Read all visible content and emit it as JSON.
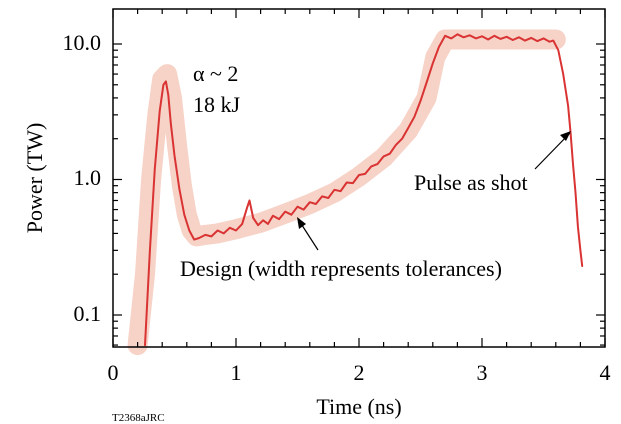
{
  "figure_id": "T2368aJRC",
  "chart_data": {
    "type": "line",
    "xlabel": "Time (ns)",
    "ylabel": "Power (TW)",
    "xlim": [
      0,
      4
    ],
    "ylim": [
      0.06,
      18
    ],
    "y_scale": "log",
    "x_ticks": [
      0,
      1,
      2,
      3,
      4
    ],
    "x_tick_labels": [
      "0",
      "1",
      "2",
      "3",
      "4"
    ],
    "y_ticks": [
      0.1,
      1.0,
      10.0
    ],
    "y_tick_labels": [
      "0.1",
      "1.0",
      "10.0"
    ],
    "annotations": {
      "alpha": "α ~ 2",
      "energy": "18 kJ",
      "shot_label": "Pulse as shot",
      "design_label": "Design (width represents tolerances)"
    },
    "series": [
      {
        "name": "Design (width represents tolerances)",
        "color": "#f6cdc0",
        "x": [
          0.2,
          0.26,
          0.31,
          0.36,
          0.4,
          0.44,
          0.48,
          0.52,
          0.56,
          0.6,
          0.64,
          0.68,
          0.75,
          0.85,
          1.0,
          1.2,
          1.4,
          1.6,
          1.8,
          2.0,
          2.2,
          2.4,
          2.55,
          2.62,
          2.7,
          3.0,
          3.3,
          3.6
        ],
        "y": [
          0.06,
          0.2,
          1.0,
          3.0,
          5.5,
          6.0,
          4.0,
          1.8,
          0.9,
          0.55,
          0.42,
          0.38,
          0.39,
          0.4,
          0.43,
          0.48,
          0.56,
          0.66,
          0.8,
          1.05,
          1.45,
          2.3,
          4.0,
          8.0,
          10.8,
          10.8,
          10.8,
          10.8
        ]
      },
      {
        "name": "Pulse as shot",
        "color": "#d93333",
        "x": [
          0.26,
          0.3,
          0.34,
          0.38,
          0.41,
          0.43,
          0.45,
          0.47,
          0.5,
          0.54,
          0.58,
          0.62,
          0.66,
          0.7,
          0.75,
          0.8,
          0.85,
          0.9,
          0.95,
          1.0,
          1.05,
          1.09,
          1.11,
          1.14,
          1.18,
          1.22,
          1.26,
          1.3,
          1.35,
          1.4,
          1.45,
          1.5,
          1.55,
          1.6,
          1.65,
          1.7,
          1.75,
          1.8,
          1.85,
          1.9,
          1.95,
          2.0,
          2.05,
          2.1,
          2.15,
          2.2,
          2.25,
          2.3,
          2.35,
          2.4,
          2.45,
          2.5,
          2.55,
          2.6,
          2.65,
          2.7,
          2.75,
          2.8,
          2.85,
          2.9,
          2.95,
          3.0,
          3.05,
          3.1,
          3.15,
          3.2,
          3.25,
          3.3,
          3.35,
          3.4,
          3.45,
          3.5,
          3.55,
          3.58,
          3.62,
          3.66,
          3.7,
          3.72,
          3.74,
          3.76,
          3.78,
          3.8,
          3.815
        ],
        "y": [
          0.06,
          0.3,
          1.2,
          3.2,
          5.0,
          5.3,
          4.2,
          2.6,
          1.5,
          0.85,
          0.55,
          0.42,
          0.36,
          0.37,
          0.39,
          0.38,
          0.42,
          0.4,
          0.44,
          0.42,
          0.47,
          0.62,
          0.7,
          0.52,
          0.46,
          0.5,
          0.47,
          0.54,
          0.51,
          0.58,
          0.55,
          0.63,
          0.6,
          0.68,
          0.66,
          0.75,
          0.73,
          0.84,
          0.82,
          0.95,
          0.94,
          1.08,
          1.1,
          1.25,
          1.3,
          1.48,
          1.55,
          1.8,
          2.0,
          2.4,
          2.9,
          3.8,
          5.2,
          7.2,
          9.5,
          11.5,
          11.0,
          11.8,
          11.2,
          11.6,
          11.0,
          11.4,
          10.8,
          11.5,
          10.9,
          11.3,
          10.7,
          11.2,
          10.6,
          11.1,
          10.5,
          11.0,
          10.4,
          10.6,
          9.0,
          6.0,
          3.5,
          2.2,
          1.3,
          0.8,
          0.45,
          0.3,
          0.23
        ]
      }
    ]
  }
}
